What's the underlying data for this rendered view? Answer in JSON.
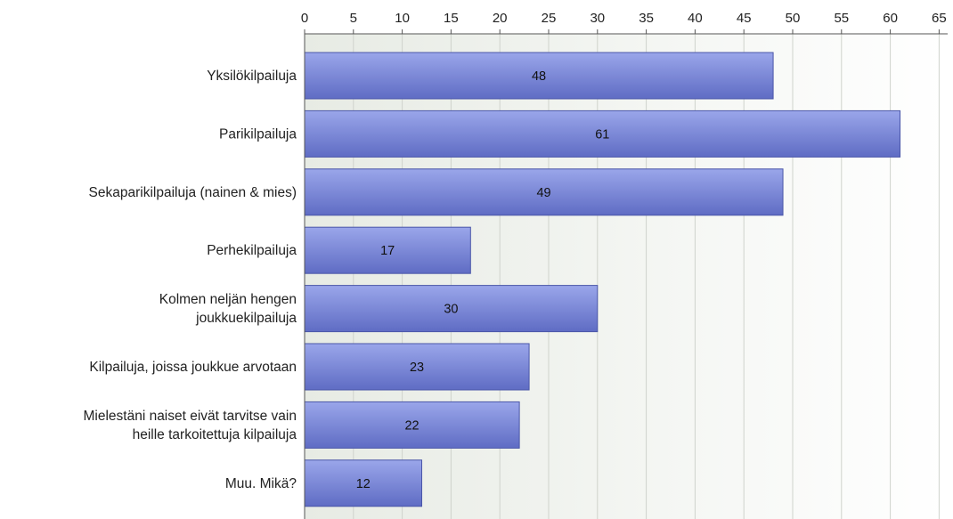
{
  "chart_data": {
    "type": "bar",
    "orientation": "horizontal",
    "categories": [
      "Yksilökilpailuja",
      "Parikilpailuja",
      "Sekaparikilpailuja (nainen & mies)",
      "Perhekilpailuja",
      "Kolmen neljän hengen joukkuekilpailuja",
      "Kilpailuja, joissa joukkue arvotaan",
      "Mielestäni naiset eivät tarvitse vain heille tarkoitettuja kilpailuja",
      "Muu. Mikä?"
    ],
    "category_lines": [
      [
        "Yksilökilpailuja"
      ],
      [
        "Parikilpailuja"
      ],
      [
        "Sekaparikilpailuja (nainen & mies)"
      ],
      [
        "Perhekilpailuja"
      ],
      [
        "Kolmen neljän hengen",
        "joukkuekilpailuja"
      ],
      [
        "Kilpailuja, joissa joukkue arvotaan"
      ],
      [
        "Mielestäni naiset eivät tarvitse vain",
        "heille tarkoitettuja kilpailuja"
      ],
      [
        "Muu. Mikä?"
      ]
    ],
    "values": [
      48,
      61,
      49,
      17,
      30,
      23,
      22,
      12
    ],
    "x_ticks": [
      0,
      5,
      10,
      15,
      20,
      25,
      30,
      35,
      40,
      45,
      50,
      55,
      60,
      65
    ],
    "xlim": [
      0,
      65
    ],
    "xaxis_position": "top",
    "grid": true,
    "data_labels": true,
    "colors": {
      "bar_fill_top": "#9aa6ea",
      "bar_fill_bottom": "#5f6cc4",
      "bar_stroke": "#4a56a8",
      "plot_bg_left": "#e7ebe4",
      "plot_bg_right": "#ffffff",
      "grid": "#cfd3cc",
      "axis": "#555555"
    }
  }
}
